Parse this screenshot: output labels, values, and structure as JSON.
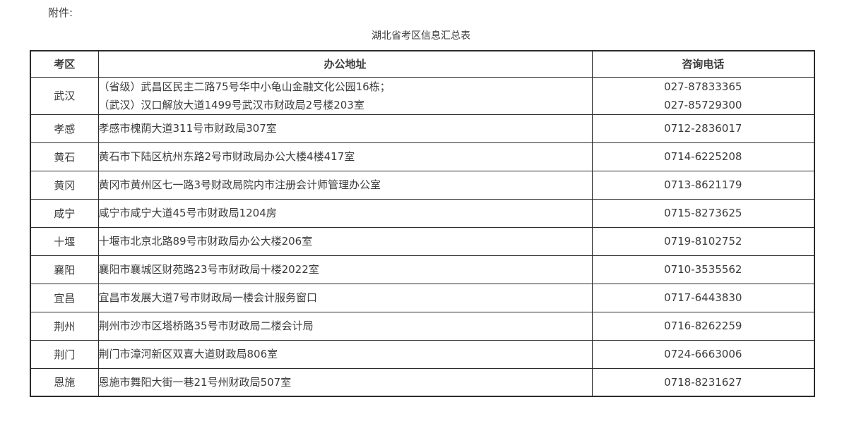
{
  "page": {
    "attachment_label": "附件:",
    "title": "湖北省考区信息汇总表"
  },
  "table": {
    "headers": {
      "district": "考区",
      "address": "办公地址",
      "phone": "咨询电话"
    },
    "rows": [
      {
        "district": "武汉",
        "address": "（省级）武昌区民主二路75号华中小龟山金融文化公园16栋；\n（武汉）汉口解放大道1499号武汉市财政局2号楼203室",
        "phone": "027-87833365\n027-85729300"
      },
      {
        "district": "孝感",
        "address": "孝感市槐荫大道311号市财政局307室",
        "phone": "0712-2836017"
      },
      {
        "district": "黄石",
        "address": "黄石市下陆区杭州东路2号市财政局办公大楼4楼417室",
        "phone": "0714-6225208"
      },
      {
        "district": "黄冈",
        "address": "黄冈市黄州区七一路3号财政局院内市注册会计师管理办公室",
        "phone": "0713-8621179"
      },
      {
        "district": "咸宁",
        "address": "咸宁市咸宁大道45号市财政局1204房",
        "phone": "0715-8273625"
      },
      {
        "district": "十堰",
        "address": "十堰市北京北路89号市财政局办公大楼206室",
        "phone": "0719-8102752"
      },
      {
        "district": "襄阳",
        "address": "襄阳市襄城区财苑路23号市财政局十楼2022室",
        "phone": "0710-3535562"
      },
      {
        "district": "宜昌",
        "address": "宜昌市发展大道7号市财政局一楼会计服务窗口",
        "phone": "0717-6443830"
      },
      {
        "district": "荆州",
        "address": "荆州市沙市区塔桥路35号市财政局二楼会计局",
        "phone": "0716-8262259"
      },
      {
        "district": "荆门",
        "address": "荆门市漳河新区双喜大道财政局806室",
        "phone": "0724-6663006"
      },
      {
        "district": "恩施",
        "address": "恩施市舞阳大街一巷21号州财政局507室",
        "phone": "0718-8231627"
      }
    ]
  },
  "colors": {
    "text": "#3b3b3b",
    "border": "#2b2b2b",
    "background": "#ffffff"
  }
}
